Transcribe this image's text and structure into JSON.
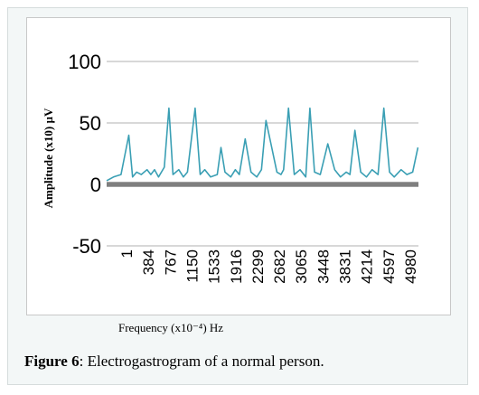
{
  "chart_data": {
    "type": "line",
    "ylabel": "Amplitude (x10) µV",
    "xlabel": "Frequency (x10⁻⁴) Hz",
    "ylim": [
      -50,
      100
    ],
    "yticks": [
      100,
      50,
      0,
      -50
    ],
    "x_tick_labels": [
      "1",
      "384",
      "767",
      "1150",
      "1533",
      "1916",
      "2299",
      "2682",
      "3065",
      "3448",
      "3831",
      "4214",
      "4597",
      "4980"
    ],
    "xlim": [
      1,
      5400
    ],
    "grid": true,
    "series": [
      {
        "color": "#3a9fb4",
        "x": [
          1,
          120,
          250,
          384,
          450,
          520,
          600,
          700,
          767,
          830,
          900,
          1000,
          1080,
          1150,
          1250,
          1330,
          1400,
          1533,
          1620,
          1700,
          1800,
          1916,
          1980,
          2050,
          2150,
          2230,
          2299,
          2400,
          2500,
          2600,
          2682,
          2760,
          2850,
          2950,
          3020,
          3065,
          3150,
          3250,
          3350,
          3448,
          3520,
          3600,
          3700,
          3831,
          3950,
          4050,
          4150,
          4214,
          4300,
          4400,
          4500,
          4597,
          4700,
          4800,
          4900,
          4980,
          5100,
          5200,
          5300,
          5390
        ],
        "values": [
          3,
          6,
          8,
          40,
          6,
          10,
          8,
          12,
          8,
          12,
          6,
          14,
          62,
          8,
          12,
          6,
          10,
          62,
          8,
          12,
          6,
          8,
          30,
          10,
          6,
          12,
          8,
          37,
          10,
          6,
          12,
          52,
          32,
          10,
          8,
          12,
          62,
          8,
          12,
          6,
          62,
          10,
          8,
          33,
          12,
          6,
          10,
          8,
          44,
          10,
          6,
          12,
          8,
          62,
          10,
          6,
          12,
          8,
          10,
          30
        ]
      }
    ],
    "baseline_band": {
      "color": "#7f7f7f",
      "from": -2,
      "to": 2
    }
  },
  "caption": {
    "label": "Figure 6",
    "text": ": Electrogastrogram of a normal person."
  }
}
